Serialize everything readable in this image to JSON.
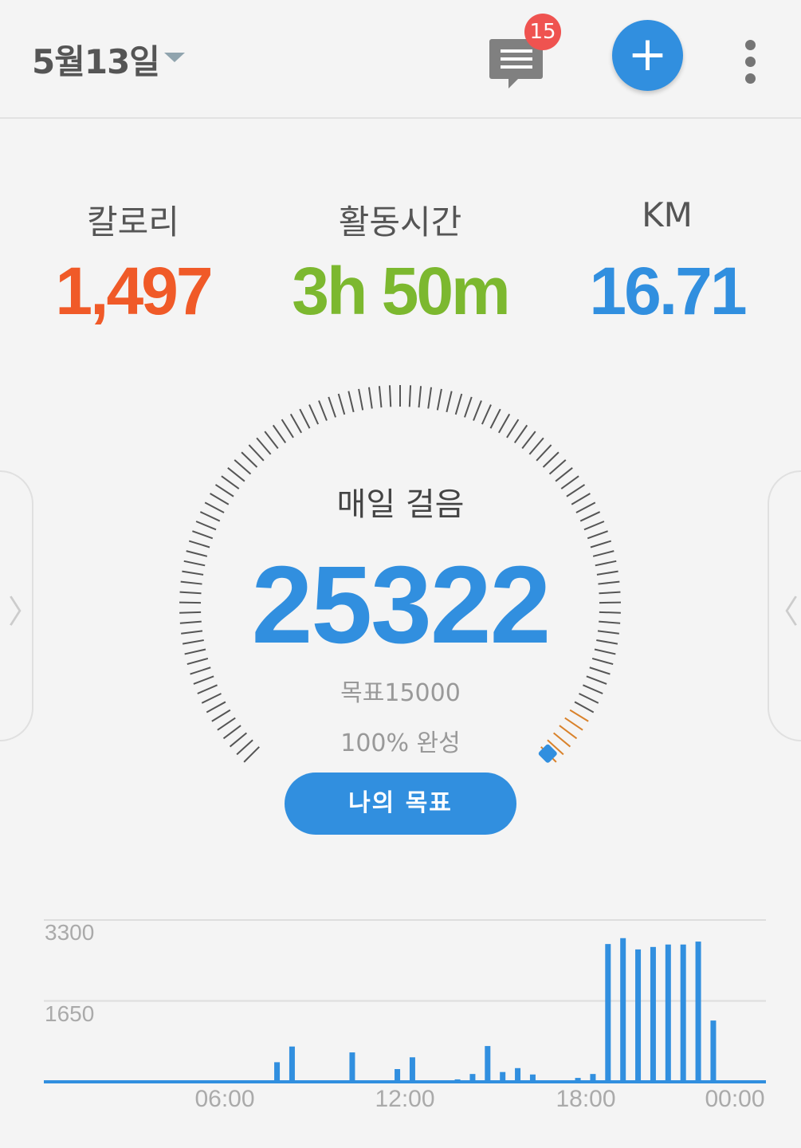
{
  "header": {
    "date": "5월13일",
    "message_badge_count": "15",
    "add_label": "+"
  },
  "icons": [
    "chevron-down-icon",
    "message-icon",
    "plus-icon",
    "more-vert-icon",
    "chevron-left-icon",
    "chevron-right-icon"
  ],
  "stats": [
    {
      "label": "칼로리",
      "value": "1,497",
      "color": "#f05a28"
    },
    {
      "label": "활동시간",
      "value": "3h 50m",
      "color": "#7cb82f"
    },
    {
      "label": "KM",
      "value": "16.71",
      "color": "#318fdf"
    }
  ],
  "gauge": {
    "title": "매일 걸음",
    "steps": "25322",
    "goal": "목표15000",
    "percent_text": "100% 완성",
    "progress_fraction": 1.0
  },
  "goal_button": "나의 목표",
  "colors": {
    "accent": "#318fdf",
    "badge": "#ef5350",
    "tick": "#555555",
    "tick_highlight": "#d9822b"
  },
  "chart_data": {
    "type": "bar",
    "y_ticks": [
      "3300",
      "1650"
    ],
    "ylim": [
      0,
      3300
    ],
    "x_ticks": [
      "06:00",
      "12:00",
      "18:00",
      "00:00"
    ],
    "xlim_hours": [
      0,
      24
    ],
    "grid": true,
    "bins_start": [
      "07:30",
      "08:00",
      "10:00",
      "11:30",
      "12:00",
      "13:30",
      "14:00",
      "14:30",
      "15:00",
      "15:30",
      "16:00",
      "17:30",
      "18:00",
      "18:30",
      "19:00",
      "19:30",
      "20:00",
      "20:30",
      "21:00",
      "21:30",
      "22:00"
    ],
    "values": [
      400,
      720,
      600,
      260,
      500,
      50,
      160,
      730,
      200,
      280,
      150,
      80,
      160,
      2810,
      2930,
      2700,
      2750,
      2800,
      2800,
      2860,
      1250
    ]
  }
}
